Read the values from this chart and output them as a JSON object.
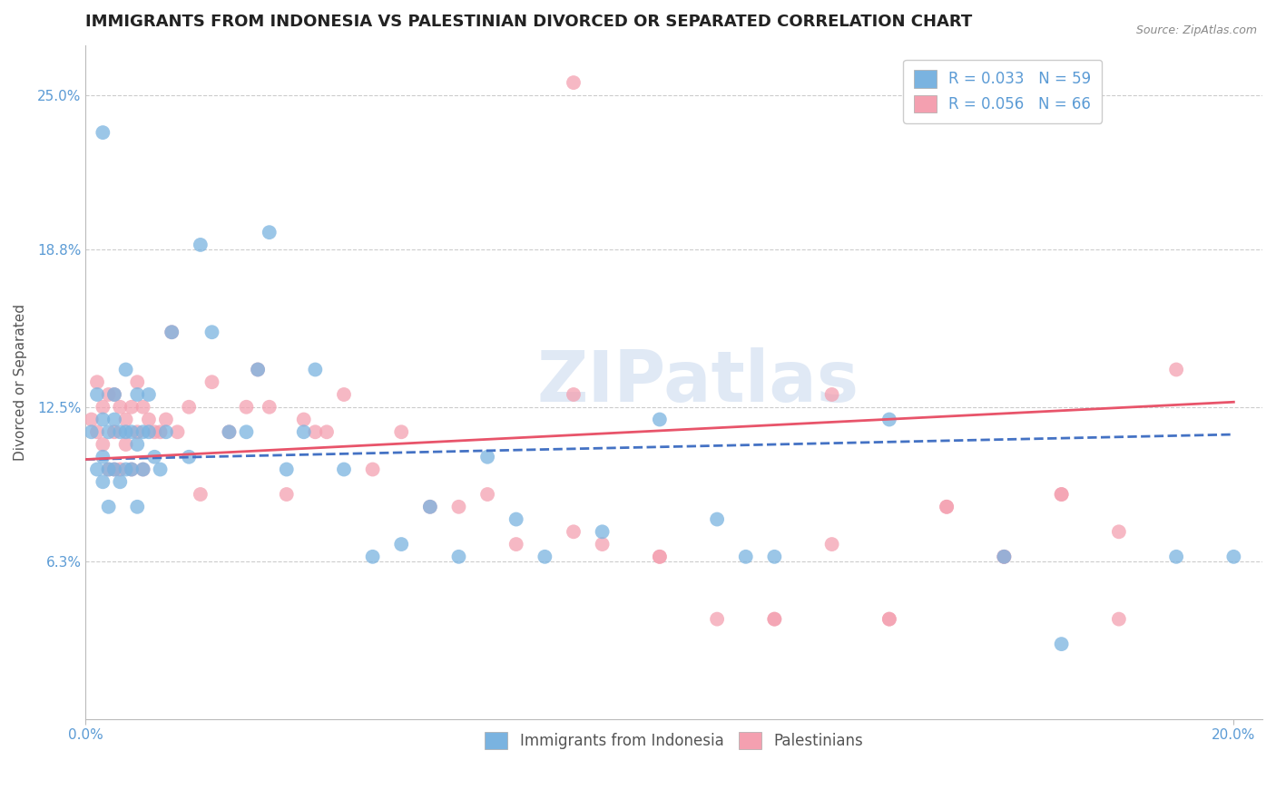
{
  "title": "IMMIGRANTS FROM INDONESIA VS PALESTINIAN DIVORCED OR SEPARATED CORRELATION CHART",
  "source_text": "Source: ZipAtlas.com",
  "ylabel": "Divorced or Separated",
  "xlim": [
    0.0,
    0.205
  ],
  "ylim": [
    0.0,
    0.27
  ],
  "x_tick_labels": [
    "0.0%",
    "20.0%"
  ],
  "x_tick_values": [
    0.0,
    0.2
  ],
  "y_tick_labels": [
    "6.3%",
    "12.5%",
    "18.8%",
    "25.0%"
  ],
  "y_tick_values": [
    0.063,
    0.125,
    0.188,
    0.25
  ],
  "grid_color": "#cccccc",
  "background_color": "#ffffff",
  "watermark_text": "ZIPatlas",
  "legend_r1": "R = 0.033",
  "legend_n1": "N = 59",
  "legend_r2": "R = 0.056",
  "legend_n2": "N = 66",
  "series1_color": "#7ab3e0",
  "series2_color": "#f4a0b0",
  "series1_label": "Immigrants from Indonesia",
  "series2_label": "Palestinians",
  "trend1_color": "#4472c4",
  "trend2_color": "#e8546a",
  "title_fontsize": 13,
  "axis_label_fontsize": 11,
  "tick_fontsize": 11,
  "legend_fontsize": 12,
  "blue_x": [
    0.001,
    0.002,
    0.002,
    0.003,
    0.003,
    0.003,
    0.004,
    0.004,
    0.004,
    0.005,
    0.005,
    0.005,
    0.006,
    0.006,
    0.007,
    0.007,
    0.007,
    0.008,
    0.008,
    0.009,
    0.009,
    0.009,
    0.01,
    0.01,
    0.011,
    0.011,
    0.012,
    0.013,
    0.014,
    0.015,
    0.018,
    0.02,
    0.022,
    0.025,
    0.028,
    0.03,
    0.032,
    0.035,
    0.038,
    0.04,
    0.045,
    0.05,
    0.055,
    0.06,
    0.065,
    0.07,
    0.075,
    0.08,
    0.09,
    0.1,
    0.11,
    0.115,
    0.12,
    0.14,
    0.16,
    0.17,
    0.19,
    0.2,
    0.003
  ],
  "blue_y": [
    0.115,
    0.13,
    0.1,
    0.12,
    0.105,
    0.095,
    0.115,
    0.1,
    0.085,
    0.13,
    0.12,
    0.1,
    0.115,
    0.095,
    0.115,
    0.1,
    0.14,
    0.115,
    0.1,
    0.13,
    0.11,
    0.085,
    0.115,
    0.1,
    0.13,
    0.115,
    0.105,
    0.1,
    0.115,
    0.155,
    0.105,
    0.19,
    0.155,
    0.115,
    0.115,
    0.14,
    0.195,
    0.1,
    0.115,
    0.14,
    0.1,
    0.065,
    0.07,
    0.085,
    0.065,
    0.105,
    0.08,
    0.065,
    0.075,
    0.12,
    0.08,
    0.065,
    0.065,
    0.12,
    0.065,
    0.03,
    0.065,
    0.065,
    0.235
  ],
  "pink_x": [
    0.001,
    0.002,
    0.002,
    0.003,
    0.003,
    0.004,
    0.004,
    0.005,
    0.005,
    0.005,
    0.006,
    0.006,
    0.007,
    0.007,
    0.008,
    0.008,
    0.009,
    0.009,
    0.01,
    0.01,
    0.011,
    0.012,
    0.013,
    0.014,
    0.015,
    0.016,
    0.018,
    0.02,
    0.022,
    0.025,
    0.028,
    0.03,
    0.032,
    0.035,
    0.038,
    0.04,
    0.042,
    0.045,
    0.05,
    0.055,
    0.06,
    0.065,
    0.07,
    0.075,
    0.085,
    0.09,
    0.1,
    0.11,
    0.12,
    0.13,
    0.14,
    0.15,
    0.16,
    0.17,
    0.18,
    0.19,
    0.085,
    0.085,
    0.1,
    0.12,
    0.13,
    0.14,
    0.15,
    0.16,
    0.17,
    0.18
  ],
  "pink_y": [
    0.12,
    0.135,
    0.115,
    0.125,
    0.11,
    0.13,
    0.1,
    0.13,
    0.115,
    0.1,
    0.125,
    0.1,
    0.12,
    0.11,
    0.125,
    0.1,
    0.135,
    0.115,
    0.125,
    0.1,
    0.12,
    0.115,
    0.115,
    0.12,
    0.155,
    0.115,
    0.125,
    0.09,
    0.135,
    0.115,
    0.125,
    0.14,
    0.125,
    0.09,
    0.12,
    0.115,
    0.115,
    0.13,
    0.1,
    0.115,
    0.085,
    0.085,
    0.09,
    0.07,
    0.075,
    0.07,
    0.065,
    0.04,
    0.04,
    0.07,
    0.04,
    0.085,
    0.065,
    0.09,
    0.075,
    0.14,
    0.255,
    0.13,
    0.065,
    0.04,
    0.13,
    0.04,
    0.085,
    0.065,
    0.09,
    0.04
  ],
  "blue_trend_x": [
    0.0,
    0.2
  ],
  "blue_trend_y": [
    0.104,
    0.114
  ],
  "pink_trend_x": [
    0.0,
    0.2
  ],
  "pink_trend_y": [
    0.104,
    0.127
  ]
}
